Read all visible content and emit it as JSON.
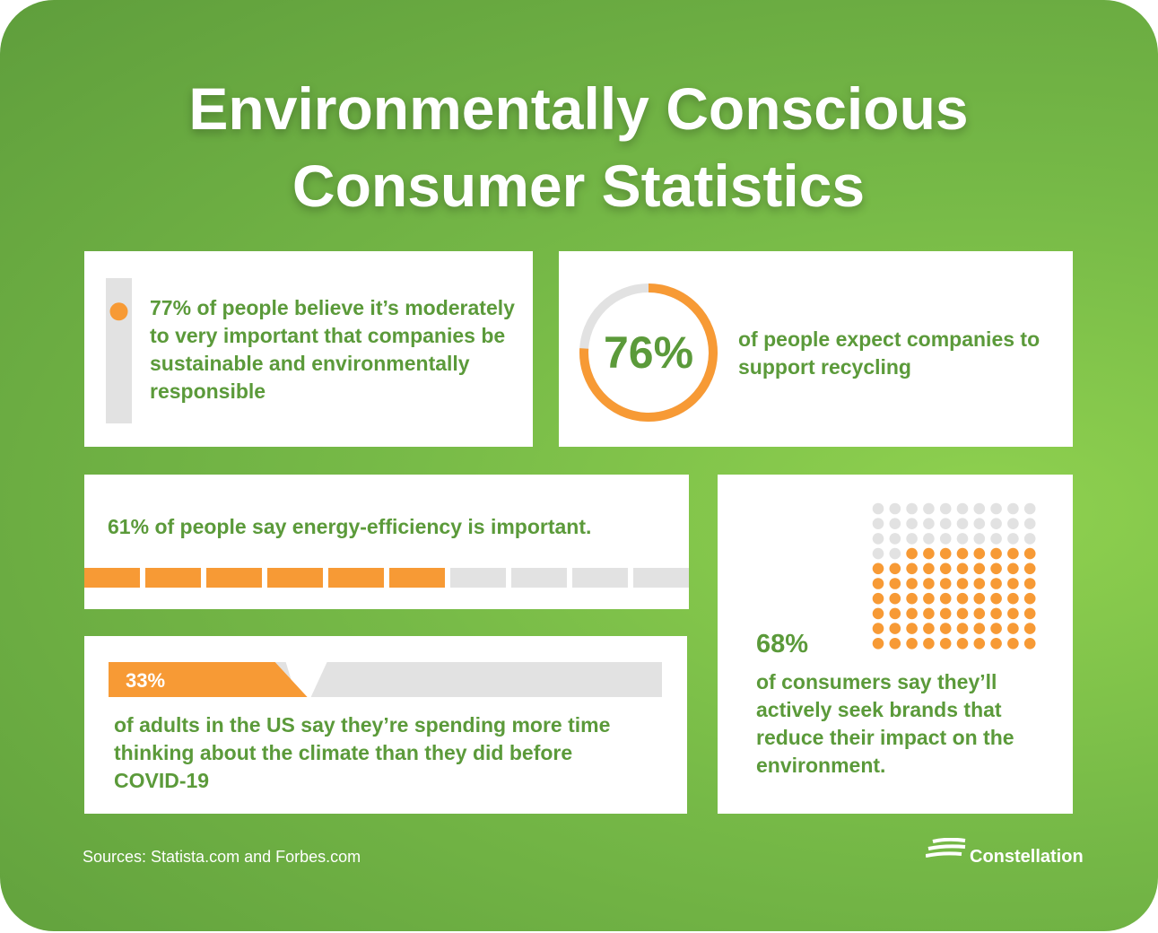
{
  "title": "Environmentally Conscious Consumer Statistics",
  "stats": [
    {
      "value": 77,
      "label": "77%",
      "text": "of people believe it’s moderately to very important that companies be sustainable and environmentally responsible"
    },
    {
      "value": 76,
      "label": "76%",
      "text": "of people expect companies to support recycling"
    },
    {
      "value": 61,
      "label": "61%",
      "text": "of people say energy-efficiency is important."
    },
    {
      "value": 33,
      "label": "33%",
      "text": "of adults in the US say they’re spending more time thinking about the climate than they did before COVID-19"
    },
    {
      "value": 68,
      "label": "68%",
      "text": "of consumers say they’ll actively seek brands that reduce their impact on the environment."
    }
  ],
  "sources": "Sources: Statista.com and Forbes.com",
  "brand": "Constellation"
}
